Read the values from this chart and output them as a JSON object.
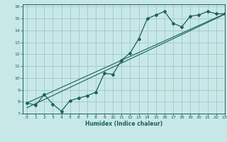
{
  "title": "",
  "xlabel": "Humidex (Indice chaleur)",
  "background_color": "#c8e8e8",
  "grid_color": "#a0c8c8",
  "line_color": "#1a6060",
  "xlim": [
    -0.5,
    23
  ],
  "ylim": [
    7,
    16.2
  ],
  "xticks": [
    0,
    1,
    2,
    3,
    4,
    5,
    6,
    7,
    8,
    9,
    10,
    11,
    12,
    13,
    14,
    15,
    16,
    17,
    18,
    19,
    20,
    21,
    22,
    23
  ],
  "yticks": [
    7,
    8,
    9,
    10,
    11,
    12,
    13,
    14,
    15,
    16
  ],
  "curve1_x": [
    0,
    1,
    2,
    3,
    4,
    5,
    6,
    7,
    8,
    9,
    10,
    11,
    12,
    13,
    14,
    15,
    16,
    17,
    18,
    19,
    20,
    21,
    22,
    23
  ],
  "curve1_y": [
    7.9,
    7.7,
    8.6,
    7.8,
    7.2,
    8.1,
    8.3,
    8.5,
    8.8,
    10.4,
    10.3,
    11.5,
    12.1,
    13.3,
    15.0,
    15.3,
    15.6,
    14.6,
    14.3,
    15.2,
    15.3,
    15.6,
    15.4,
    15.4
  ],
  "line2_x": [
    0,
    23
  ],
  "line2_y": [
    7.9,
    15.4
  ],
  "line3_x": [
    0,
    23
  ],
  "line3_y": [
    7.5,
    15.35
  ]
}
